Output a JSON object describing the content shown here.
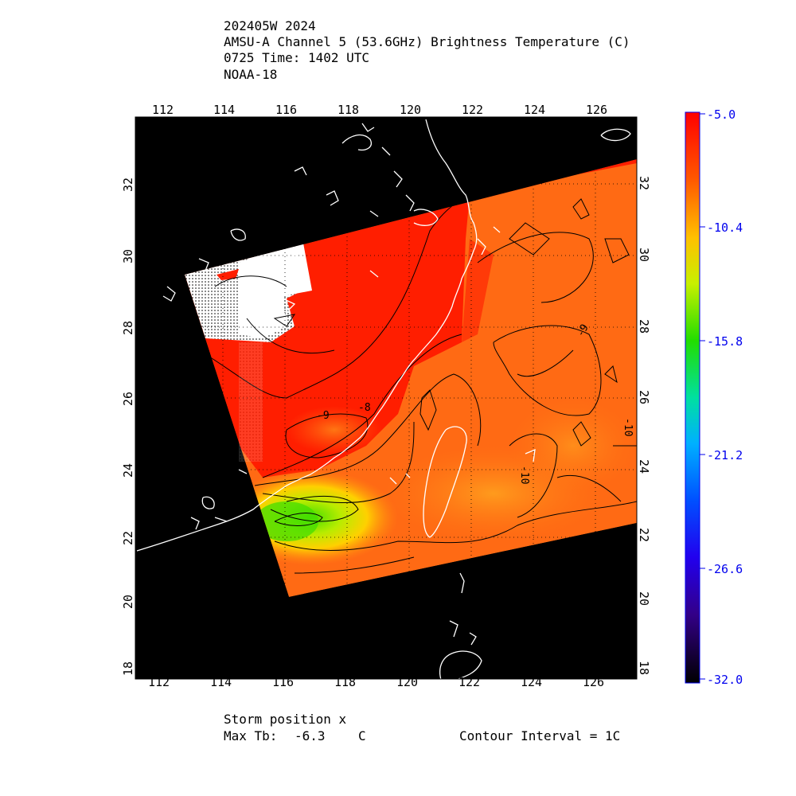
{
  "header": {
    "line1": "202405W 2024",
    "line2": "AMSU-A Channel 5 (53.6GHz) Brightness Temperature (C)",
    "line3": "0725 Time: 1402 UTC",
    "line4": "NOAA-18"
  },
  "axes": {
    "lon_ticks": [
      "112",
      "114",
      "116",
      "118",
      "120",
      "122",
      "124",
      "126"
    ],
    "lat_ticks": [
      "32",
      "30",
      "28",
      "26",
      "24",
      "22",
      "20",
      "18"
    ]
  },
  "colorbar": {
    "labels": [
      "-5.0",
      "-10.4",
      "-15.8",
      "-21.2",
      "-26.6",
      "-32.0"
    ],
    "max": -5.0,
    "min": -32.0
  },
  "contour_labels": [
    "-9",
    "-8",
    "-9",
    "-10",
    "-10"
  ],
  "colors": {
    "warm": "#ff1a00",
    "orange": "#ff6a14",
    "yellow": "#ffd000",
    "green": "#44dd00",
    "coast": "#ffffff",
    "land_bg": "#000000"
  },
  "footer": {
    "storm_position": "Storm position x",
    "max_tb_label": "Max Tb:",
    "max_tb_value": "-6.3",
    "max_tb_unit": "C",
    "contour_interval": "Contour Interval = 1C"
  }
}
